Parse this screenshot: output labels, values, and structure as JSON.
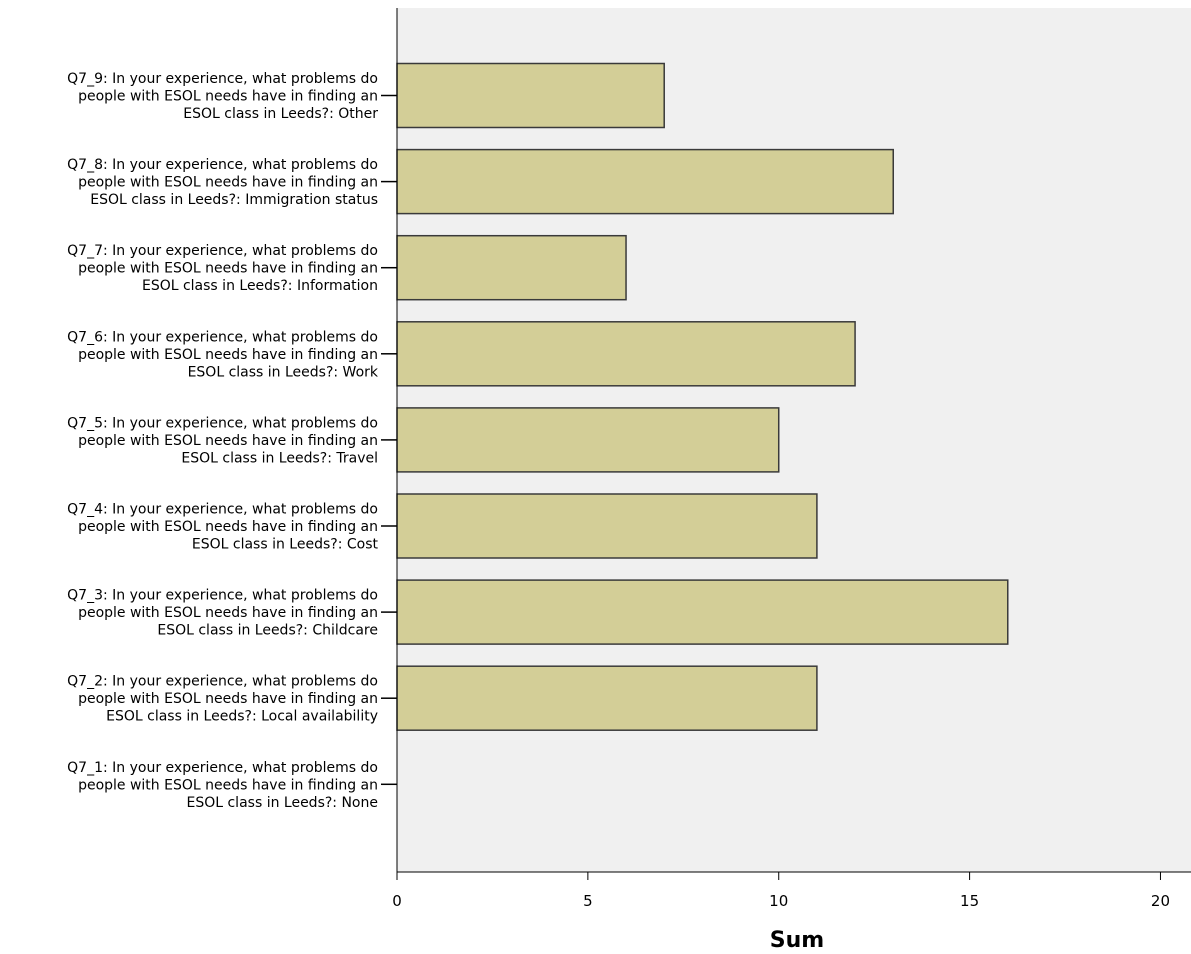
{
  "colors": {
    "plot_background": "#f0f0f0",
    "bar_fill": "#d3ce97",
    "bar_stroke": "#3a3a3a",
    "axis": "#000000"
  },
  "chart_data": {
    "type": "bar",
    "orientation": "horizontal",
    "xlabel": "Sum",
    "ylabel": "",
    "xlim": [
      0,
      20.8
    ],
    "xticks": [
      0,
      5,
      10,
      15,
      20
    ],
    "grid": false,
    "legend": "none",
    "categories": [
      {
        "lines": [
          "Q7_9: In your experience, what problems do",
          "people with ESOL needs have in finding an",
          "ESOL class in Leeds?: Other"
        ],
        "value": 7
      },
      {
        "lines": [
          "Q7_8: In your experience, what problems do",
          "people with ESOL needs have in finding an",
          "ESOL class in Leeds?: Immigration status"
        ],
        "value": 13
      },
      {
        "lines": [
          "Q7_7: In your experience, what problems do",
          "people with ESOL needs have in finding an",
          "ESOL class in Leeds?: Information"
        ],
        "value": 6
      },
      {
        "lines": [
          "Q7_6: In your experience, what problems do",
          "people with ESOL needs have in finding an",
          "ESOL class in Leeds?: Work"
        ],
        "value": 12
      },
      {
        "lines": [
          "Q7_5: In your experience, what problems do",
          "people with ESOL needs have in finding an",
          "ESOL class in Leeds?: Travel"
        ],
        "value": 10
      },
      {
        "lines": [
          "Q7_4: In your experience, what problems do",
          "people with ESOL needs have in finding an",
          "ESOL class in Leeds?: Cost"
        ],
        "value": 11
      },
      {
        "lines": [
          "Q7_3: In your experience, what problems do",
          "people with ESOL needs have in finding an",
          "ESOL class in Leeds?: Childcare"
        ],
        "value": 16
      },
      {
        "lines": [
          "Q7_2: In your experience, what problems do",
          "people with ESOL needs have in finding an",
          "ESOL class in Leeds?: Local availability"
        ],
        "value": 11
      },
      {
        "lines": [
          "Q7_1: In your experience, what problems do",
          "people with ESOL needs have in finding an",
          "ESOL class in Leeds?: None"
        ],
        "value": 0
      }
    ]
  }
}
